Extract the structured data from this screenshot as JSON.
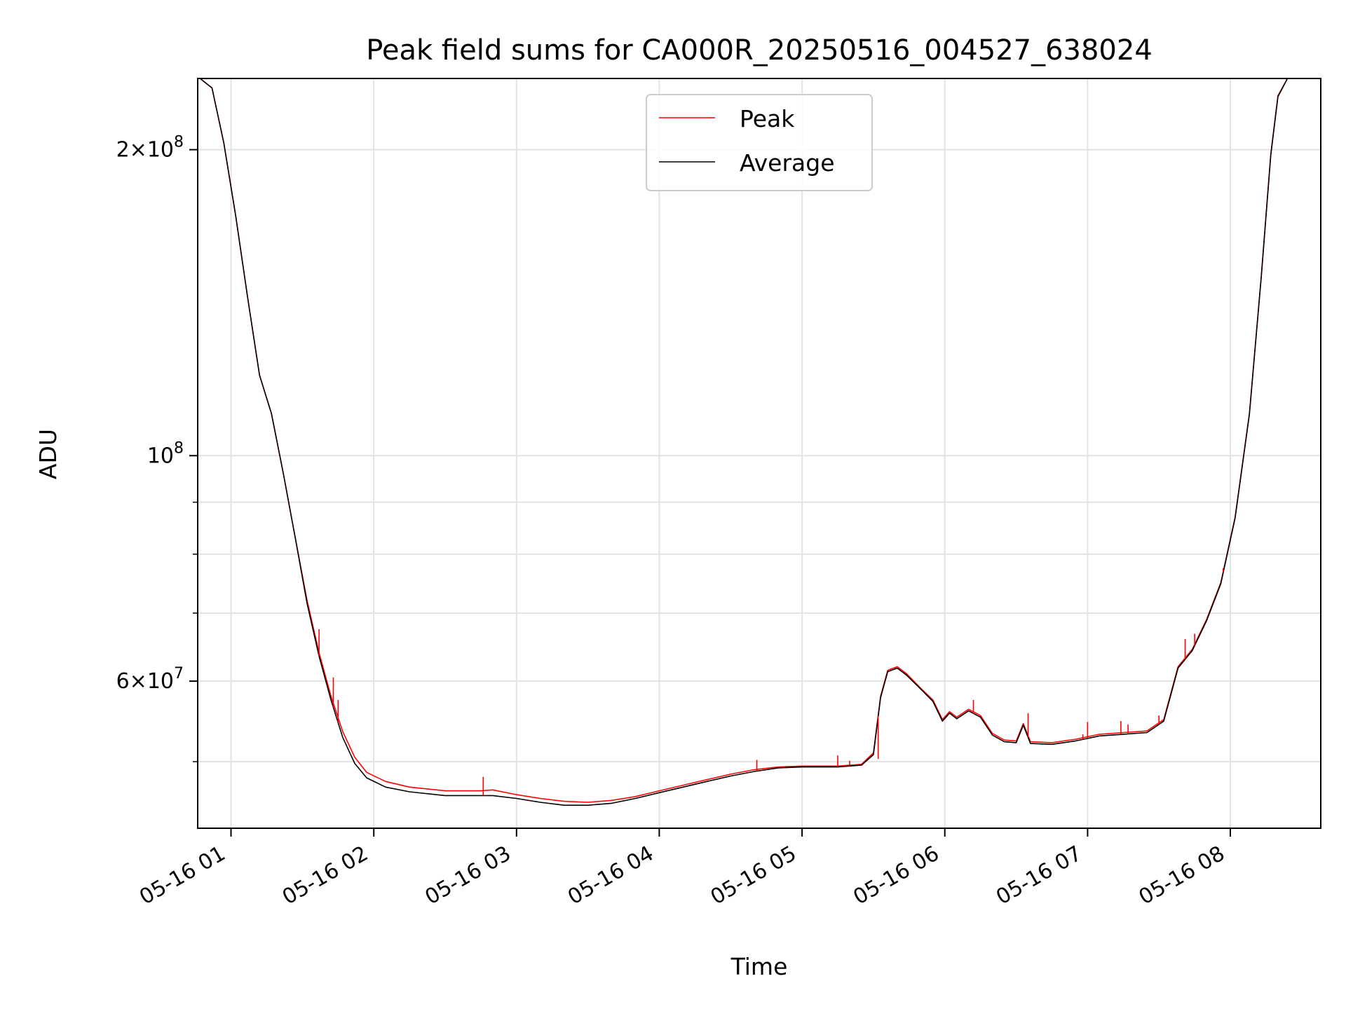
{
  "chart_data": {
    "type": "line",
    "title": "Peak field sums for CA000R_20250516_004527_638024",
    "xlabel": "Time",
    "ylabel": "ADU",
    "yscale": "log",
    "grid": true,
    "legend_position": "top-center",
    "xlim": [
      "2025-05-16 00:46",
      "2025-05-16 08:38"
    ],
    "ylim": [
      43000000,
      235000000
    ],
    "x_ticks": [
      {
        "time": "2025-05-16 01:00",
        "label": "05-16 01"
      },
      {
        "time": "2025-05-16 02:00",
        "label": "05-16 02"
      },
      {
        "time": "2025-05-16 03:00",
        "label": "05-16 03"
      },
      {
        "time": "2025-05-16 04:00",
        "label": "05-16 04"
      },
      {
        "time": "2025-05-16 05:00",
        "label": "05-16 05"
      },
      {
        "time": "2025-05-16 06:00",
        "label": "05-16 06"
      },
      {
        "time": "2025-05-16 07:00",
        "label": "05-16 07"
      },
      {
        "time": "2025-05-16 08:00",
        "label": "05-16 08"
      }
    ],
    "y_major_ticks": [
      {
        "value": 100000000,
        "base": "10",
        "exp": "8",
        "mantissa": ""
      },
      {
        "value": 60000000,
        "base": "10",
        "exp": "7",
        "mantissa": "6"
      },
      {
        "value": 200000000,
        "base": "10",
        "exp": "8",
        "mantissa": "2"
      }
    ],
    "y_minor_ticks": [
      50000000,
      70000000,
      80000000,
      90000000
    ],
    "series": [
      {
        "name": "Peak",
        "color": "#ff0000",
        "points": [
          [
            "2025-05-16 00:47",
            235000000
          ],
          [
            "2025-05-16 00:52",
            230000000
          ],
          [
            "2025-05-16 00:57",
            203000000
          ],
          [
            "2025-05-16 01:02",
            172000000
          ],
          [
            "2025-05-16 01:07",
            143000000
          ],
          [
            "2025-05-16 01:12",
            120000000
          ],
          [
            "2025-05-16 01:17",
            110000000
          ],
          [
            "2025-05-16 01:22",
            96000000
          ],
          [
            "2025-05-16 01:27",
            83000000
          ],
          [
            "2025-05-16 01:32",
            72000000
          ],
          [
            "2025-05-16 01:37",
            64000000
          ],
          [
            "2025-05-16 01:42",
            58000000
          ],
          [
            "2025-05-16 01:47",
            53500000
          ],
          [
            "2025-05-16 01:52",
            50500000
          ],
          [
            "2025-05-16 01:57",
            48800000
          ],
          [
            "2025-05-16 02:05",
            47800000
          ],
          [
            "2025-05-16 02:15",
            47200000
          ],
          [
            "2025-05-16 02:30",
            46800000
          ],
          [
            "2025-05-16 02:45",
            46800000
          ],
          [
            "2025-05-16 02:50",
            46900000
          ],
          [
            "2025-05-16 03:00",
            46400000
          ],
          [
            "2025-05-16 03:10",
            46000000
          ],
          [
            "2025-05-16 03:20",
            45700000
          ],
          [
            "2025-05-16 03:30",
            45600000
          ],
          [
            "2025-05-16 03:40",
            45800000
          ],
          [
            "2025-05-16 03:50",
            46200000
          ],
          [
            "2025-05-16 04:00",
            46800000
          ],
          [
            "2025-05-16 04:10",
            47400000
          ],
          [
            "2025-05-16 04:20",
            48000000
          ],
          [
            "2025-05-16 04:30",
            48600000
          ],
          [
            "2025-05-16 04:40",
            49100000
          ],
          [
            "2025-05-16 04:50",
            49400000
          ],
          [
            "2025-05-16 05:00",
            49500000
          ],
          [
            "2025-05-16 05:15",
            49500000
          ],
          [
            "2025-05-16 05:25",
            49700000
          ],
          [
            "2025-05-16 05:30",
            51000000
          ],
          [
            "2025-05-16 05:33",
            58000000
          ],
          [
            "2025-05-16 05:36",
            61500000
          ],
          [
            "2025-05-16 05:40",
            62000000
          ],
          [
            "2025-05-16 05:44",
            61000000
          ],
          [
            "2025-05-16 05:50",
            59000000
          ],
          [
            "2025-05-16 05:55",
            57500000
          ],
          [
            "2025-05-16 05:59",
            55000000
          ],
          [
            "2025-05-16 06:02",
            56000000
          ],
          [
            "2025-05-16 06:05",
            55300000
          ],
          [
            "2025-05-16 06:10",
            56300000
          ],
          [
            "2025-05-16 06:15",
            55500000
          ],
          [
            "2025-05-16 06:20",
            53300000
          ],
          [
            "2025-05-16 06:25",
            52500000
          ],
          [
            "2025-05-16 06:30",
            52400000
          ],
          [
            "2025-05-16 06:33",
            54500000
          ],
          [
            "2025-05-16 06:36",
            52300000
          ],
          [
            "2025-05-16 06:45",
            52200000
          ],
          [
            "2025-05-16 06:55",
            52600000
          ],
          [
            "2025-05-16 07:05",
            53200000
          ],
          [
            "2025-05-16 07:15",
            53400000
          ],
          [
            "2025-05-16 07:25",
            53600000
          ],
          [
            "2025-05-16 07:32",
            55000000
          ],
          [
            "2025-05-16 07:38",
            62000000
          ],
          [
            "2025-05-16 07:44",
            64500000
          ],
          [
            "2025-05-16 07:50",
            69000000
          ],
          [
            "2025-05-16 07:56",
            75000000
          ],
          [
            "2025-05-16 08:02",
            87000000
          ],
          [
            "2025-05-16 08:08",
            110000000
          ],
          [
            "2025-05-16 08:13",
            150000000
          ],
          [
            "2025-05-16 08:17",
            198000000
          ],
          [
            "2025-05-16 08:20",
            226000000
          ],
          [
            "2025-05-16 08:24",
            235000000
          ]
        ]
      },
      {
        "name": "Average",
        "color": "#000000",
        "points": [
          [
            "2025-05-16 00:47",
            235000000
          ],
          [
            "2025-05-16 00:52",
            230000000
          ],
          [
            "2025-05-16 00:57",
            203000000
          ],
          [
            "2025-05-16 01:02",
            172000000
          ],
          [
            "2025-05-16 01:07",
            143000000
          ],
          [
            "2025-05-16 01:12",
            120000000
          ],
          [
            "2025-05-16 01:17",
            110000000
          ],
          [
            "2025-05-16 01:22",
            96000000
          ],
          [
            "2025-05-16 01:27",
            83000000
          ],
          [
            "2025-05-16 01:32",
            71500000
          ],
          [
            "2025-05-16 01:37",
            63500000
          ],
          [
            "2025-05-16 01:42",
            57500000
          ],
          [
            "2025-05-16 01:47",
            52800000
          ],
          [
            "2025-05-16 01:52",
            49800000
          ],
          [
            "2025-05-16 01:57",
            48200000
          ],
          [
            "2025-05-16 02:05",
            47200000
          ],
          [
            "2025-05-16 02:15",
            46700000
          ],
          [
            "2025-05-16 02:30",
            46300000
          ],
          [
            "2025-05-16 02:45",
            46300000
          ],
          [
            "2025-05-16 02:50",
            46300000
          ],
          [
            "2025-05-16 03:00",
            46000000
          ],
          [
            "2025-05-16 03:10",
            45600000
          ],
          [
            "2025-05-16 03:20",
            45300000
          ],
          [
            "2025-05-16 03:30",
            45300000
          ],
          [
            "2025-05-16 03:40",
            45500000
          ],
          [
            "2025-05-16 03:50",
            46000000
          ],
          [
            "2025-05-16 04:00",
            46600000
          ],
          [
            "2025-05-16 04:10",
            47200000
          ],
          [
            "2025-05-16 04:20",
            47800000
          ],
          [
            "2025-05-16 04:30",
            48400000
          ],
          [
            "2025-05-16 04:40",
            48900000
          ],
          [
            "2025-05-16 04:50",
            49300000
          ],
          [
            "2025-05-16 05:00",
            49400000
          ],
          [
            "2025-05-16 05:15",
            49400000
          ],
          [
            "2025-05-16 05:25",
            49600000
          ],
          [
            "2025-05-16 05:30",
            50800000
          ],
          [
            "2025-05-16 05:33",
            57800000
          ],
          [
            "2025-05-16 05:36",
            61300000
          ],
          [
            "2025-05-16 05:40",
            61800000
          ],
          [
            "2025-05-16 05:44",
            60800000
          ],
          [
            "2025-05-16 05:50",
            58900000
          ],
          [
            "2025-05-16 05:55",
            57300000
          ],
          [
            "2025-05-16 05:59",
            54800000
          ],
          [
            "2025-05-16 06:02",
            55800000
          ],
          [
            "2025-05-16 06:05",
            55100000
          ],
          [
            "2025-05-16 06:10",
            56100000
          ],
          [
            "2025-05-16 06:15",
            55300000
          ],
          [
            "2025-05-16 06:20",
            53100000
          ],
          [
            "2025-05-16 06:25",
            52300000
          ],
          [
            "2025-05-16 06:30",
            52200000
          ],
          [
            "2025-05-16 06:33",
            54300000
          ],
          [
            "2025-05-16 06:36",
            52100000
          ],
          [
            "2025-05-16 06:45",
            52000000
          ],
          [
            "2025-05-16 06:55",
            52400000
          ],
          [
            "2025-05-16 07:05",
            53000000
          ],
          [
            "2025-05-16 07:15",
            53200000
          ],
          [
            "2025-05-16 07:25",
            53400000
          ],
          [
            "2025-05-16 07:32",
            54800000
          ],
          [
            "2025-05-16 07:38",
            61800000
          ],
          [
            "2025-05-16 07:44",
            64300000
          ],
          [
            "2025-05-16 07:50",
            68800000
          ],
          [
            "2025-05-16 07:56",
            74800000
          ],
          [
            "2025-05-16 08:02",
            86800000
          ],
          [
            "2025-05-16 08:08",
            109800000
          ],
          [
            "2025-05-16 08:13",
            149800000
          ],
          [
            "2025-05-16 08:17",
            197500000
          ],
          [
            "2025-05-16 08:20",
            225500000
          ],
          [
            "2025-05-16 08:24",
            235000000
          ]
        ]
      }
    ],
    "peak_spikes": [
      [
        "2025-05-16 01:37",
        67500000
      ],
      [
        "2025-05-16 01:43",
        60500000
      ],
      [
        "2025-05-16 01:45",
        57500000
      ],
      [
        "2025-05-16 02:46",
        48300000
      ],
      [
        "2025-05-16 04:41",
        50200000
      ],
      [
        "2025-05-16 05:15",
        50700000
      ],
      [
        "2025-05-16 05:20",
        50100000
      ],
      [
        "2025-05-16 05:32",
        50300000
      ],
      [
        "2025-05-16 06:12",
        57500000
      ],
      [
        "2025-05-16 06:35",
        55800000
      ],
      [
        "2025-05-16 06:58",
        53200000
      ],
      [
        "2025-05-16 07:00",
        54700000
      ],
      [
        "2025-05-16 07:14",
        54800000
      ],
      [
        "2025-05-16 07:17",
        54400000
      ],
      [
        "2025-05-16 07:30",
        55500000
      ],
      [
        "2025-05-16 07:41",
        66000000
      ],
      [
        "2025-05-16 07:45",
        66800000
      ],
      [
        "2025-05-16 07:57",
        77500000
      ]
    ]
  }
}
